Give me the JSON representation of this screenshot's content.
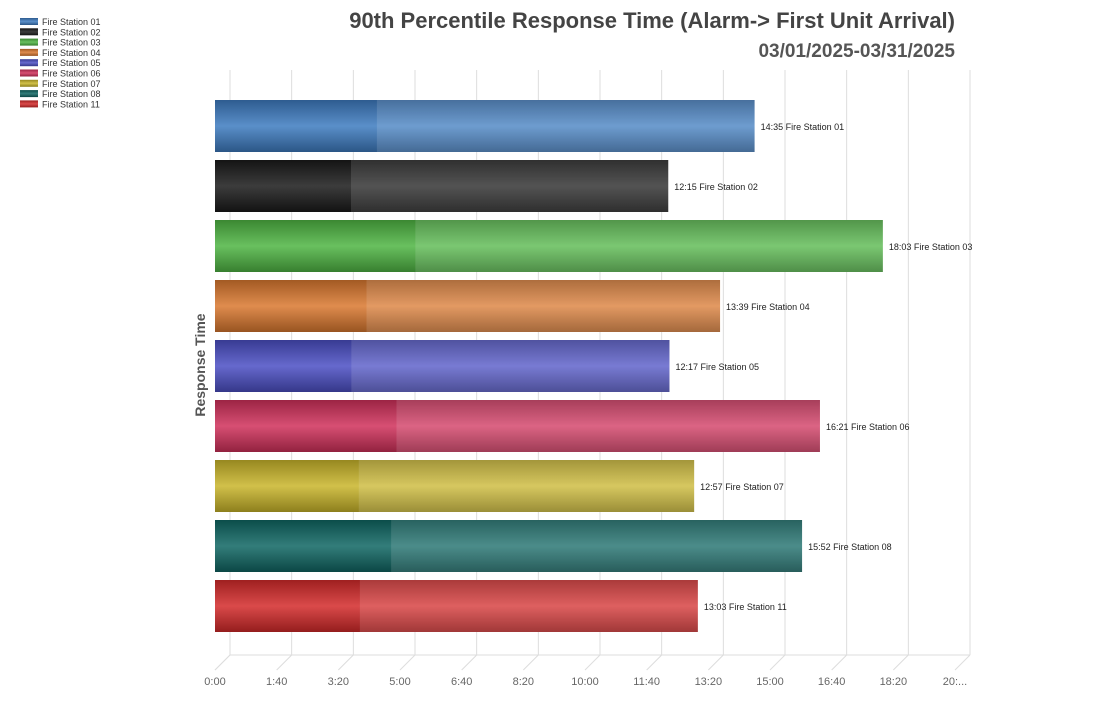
{
  "chart_data": {
    "type": "bar",
    "orientation": "horizontal",
    "title": "90th Percentile Response Time (Alarm-> First Unit Arrival)",
    "subtitle": "03/01/2025-03/31/2025",
    "ylabel": "Response Time",
    "xlabel": "",
    "xlim_seconds": [
      0,
      1200
    ],
    "x_ticks": [
      "0:00",
      "1:40",
      "3:20",
      "5:00",
      "6:40",
      "8:20",
      "10:00",
      "11:40",
      "13:20",
      "15:00",
      "16:40",
      "18:20",
      "20:..."
    ],
    "grid": true,
    "legend_position": "top-left",
    "categories": [
      "Fire Station 01",
      "Fire Station 02",
      "Fire Station 03",
      "Fire Station 04",
      "Fire Station 05",
      "Fire Station 06",
      "Fire Station 07",
      "Fire Station 08",
      "Fire Station 11"
    ],
    "labels": [
      "14:35",
      "12:15",
      "18:03",
      "13:39",
      "12:17",
      "16:21",
      "12:57",
      "15:52",
      "13:03"
    ],
    "values_seconds": [
      875,
      735,
      1083,
      819,
      737,
      981,
      777,
      952,
      783
    ],
    "colors": [
      "#3d7bc0",
      "#1a1a1a",
      "#4fb543",
      "#d9782f",
      "#4b4fc4",
      "#d0305a",
      "#c9b52a",
      "#0f6663",
      "#d42a2a"
    ]
  }
}
